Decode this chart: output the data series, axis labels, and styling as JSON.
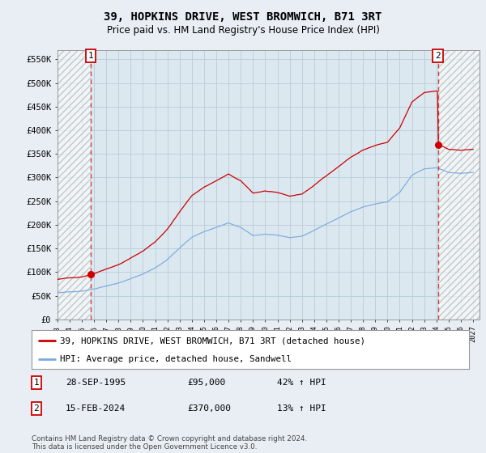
{
  "title": "39, HOPKINS DRIVE, WEST BROMWICH, B71 3RT",
  "subtitle": "Price paid vs. HM Land Registry's House Price Index (HPI)",
  "ylim": [
    0,
    570000
  ],
  "yticks": [
    0,
    50000,
    100000,
    150000,
    200000,
    250000,
    300000,
    350000,
    400000,
    450000,
    500000,
    550000
  ],
  "ytick_labels": [
    "£0",
    "£50K",
    "£100K",
    "£150K",
    "£200K",
    "£250K",
    "£300K",
    "£350K",
    "£400K",
    "£450K",
    "£500K",
    "£550K"
  ],
  "xmin": 1993.0,
  "xmax": 2027.5,
  "xticks": [
    1993,
    1994,
    1995,
    1996,
    1997,
    1998,
    1999,
    2000,
    2001,
    2002,
    2003,
    2004,
    2005,
    2006,
    2007,
    2008,
    2009,
    2010,
    2011,
    2012,
    2013,
    2014,
    2015,
    2016,
    2017,
    2018,
    2019,
    2020,
    2021,
    2022,
    2023,
    2024,
    2025,
    2026,
    2027
  ],
  "background_color": "#e8eef4",
  "plot_bg_color": "#dce8f0",
  "grid_color": "#b8ccd8",
  "sale1_x": 1995.75,
  "sale1_y": 95000,
  "sale2_x": 2024.12,
  "sale2_y": 370000,
  "sale_color": "#cc0000",
  "hpi_color": "#7aaadd",
  "legend_entries": [
    "39, HOPKINS DRIVE, WEST BROMWICH, B71 3RT (detached house)",
    "HPI: Average price, detached house, Sandwell"
  ],
  "transaction1_label": "1",
  "transaction2_label": "2",
  "transaction1_date": "28-SEP-1995",
  "transaction1_price": "£95,000",
  "transaction1_hpi": "42% ↑ HPI",
  "transaction2_date": "15-FEB-2024",
  "transaction2_price": "£370,000",
  "transaction2_hpi": "13% ↑ HPI",
  "footer": "Contains HM Land Registry data © Crown copyright and database right 2024.\nThis data is licensed under the Open Government Licence v3.0.",
  "title_fontsize": 10,
  "subtitle_fontsize": 8.5
}
